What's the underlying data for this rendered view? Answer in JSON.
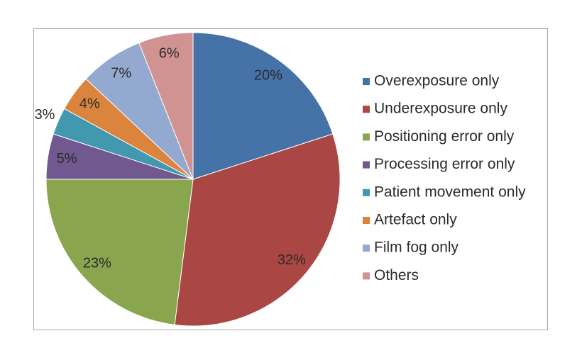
{
  "chart_data": {
    "type": "pie",
    "categories": [
      "Overexposure only",
      "Underexposure only",
      "Positioning error only",
      "Processing error only",
      "Patient movement only",
      "Artefact only",
      "Film fog only",
      "Others"
    ],
    "values": [
      20,
      32,
      23,
      5,
      3,
      4,
      7,
      6
    ],
    "value_labels": [
      "20%",
      "32%",
      "23%",
      "5%",
      "3%",
      "4%",
      "7%",
      "6%"
    ],
    "colors": [
      "#4572a7",
      "#aa4643",
      "#89a54e",
      "#71588f",
      "#4198af",
      "#db843d",
      "#93a9cf",
      "#d19392"
    ],
    "legend": "right"
  }
}
